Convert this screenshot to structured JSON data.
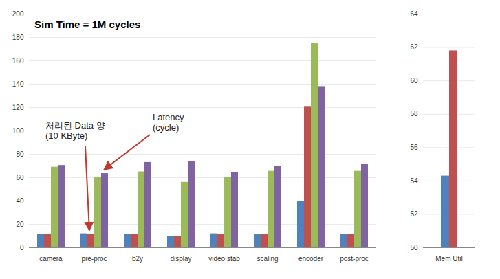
{
  "chart_data": [
    {
      "type": "bar",
      "title": "Sim Time = 1M cycles",
      "annotations": [
        "처리된 Data 양\n(10 KByte)",
        "Latency\n(cycle)"
      ],
      "categories": [
        "camera",
        "pre-proc",
        "b2y",
        "display",
        "video stab",
        "scaling",
        "encoder",
        "post-proc"
      ],
      "series": [
        {
          "color": "#4f81bd",
          "values": [
            11.5,
            12,
            11.5,
            10,
            12,
            11.5,
            40,
            11.5
          ]
        },
        {
          "color": "#c0504d",
          "values": [
            11.5,
            11.5,
            11.5,
            9.5,
            11.5,
            11.5,
            121,
            11.5
          ]
        },
        {
          "color": "#9bbb59",
          "values": [
            69,
            60,
            65,
            56,
            60,
            65.5,
            175,
            65.5
          ]
        },
        {
          "color": "#8064a2",
          "values": [
            70.5,
            63.5,
            73,
            74,
            64.5,
            70,
            138,
            71.5
          ]
        }
      ],
      "ylim": [
        0,
        200
      ],
      "yticks": [
        0,
        20,
        40,
        60,
        80,
        100,
        120,
        140,
        160,
        180,
        200
      ],
      "grid": true
    },
    {
      "type": "bar",
      "categories": [
        "Mem Util"
      ],
      "series": [
        {
          "color": "#4f81bd",
          "values": [
            54.3
          ]
        },
        {
          "color": "#c0504d",
          "values": [
            61.8
          ]
        }
      ],
      "ylim": [
        50,
        64
      ],
      "yticks": [
        50,
        52,
        54,
        56,
        58,
        60,
        62,
        64
      ],
      "grid": true
    }
  ]
}
